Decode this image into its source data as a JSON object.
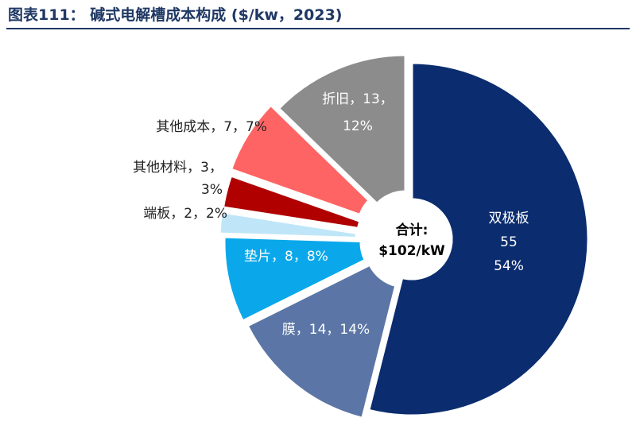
{
  "title": "图表111： 碱式电解槽成本构成 ($/kw，2023)",
  "chart_data": {
    "type": "pie",
    "style": "donut",
    "title": "碱式电解槽成本构成 ($/kw，2023)",
    "unit": "$/kW",
    "total_label": "合计:",
    "total_value": "$102/kW",
    "slices": [
      {
        "name": "双极板",
        "value": 55,
        "percent": 54,
        "color": "#0b2d6f",
        "label_lines": [
          "双极板",
          "55",
          "54%"
        ],
        "label_color": "#ffffff"
      },
      {
        "name": "膜",
        "value": 14,
        "percent": 14,
        "color": "#5b76a6",
        "label_lines": [
          "膜，14，14%"
        ],
        "label_color": "#ffffff"
      },
      {
        "name": "垫片",
        "value": 8,
        "percent": 8,
        "color": "#0aa8ea",
        "label_lines": [
          "垫片，8，8%"
        ],
        "label_color": "#ffffff"
      },
      {
        "name": "端板",
        "value": 2,
        "percent": 2,
        "color": "#bfe6f8",
        "label_lines": [
          "端板，2，2%"
        ],
        "label_color": "#222222"
      },
      {
        "name": "其他材料",
        "value": 3,
        "percent": 3,
        "color": "#b00000",
        "label_lines": [
          "其他材料，3，",
          "3%"
        ],
        "label_color": "#222222"
      },
      {
        "name": "其他成本",
        "value": 7,
        "percent": 7,
        "color": "#ff6464",
        "label_lines": [
          "其他成本，7，7%"
        ],
        "label_color": "#222222"
      },
      {
        "name": "折旧",
        "value": 13,
        "percent": 12,
        "color": "#8c8c8c",
        "label_lines": [
          "折旧，13，",
          "12%"
        ],
        "label_color": "#ffffff"
      }
    ]
  }
}
